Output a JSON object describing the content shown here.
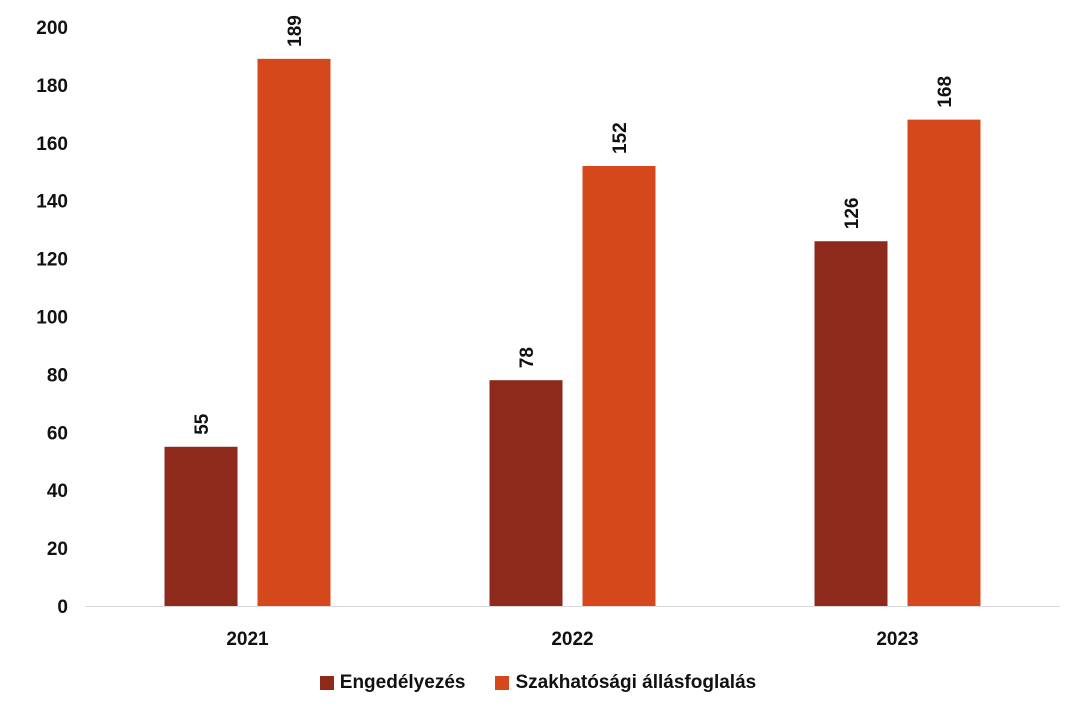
{
  "chart_data": {
    "type": "bar",
    "categories": [
      "2021",
      "2022",
      "2023"
    ],
    "series": [
      {
        "name": "Engedélyezés",
        "values": [
          55,
          78,
          126
        ],
        "color": "#8e2a1c"
      },
      {
        "name": "Szakhatósági állásfoglalás",
        "values": [
          189,
          152,
          168
        ],
        "color": "#d4481c"
      }
    ],
    "ylim": [
      0,
      200
    ],
    "yticks": [
      0,
      20,
      40,
      60,
      80,
      100,
      120,
      140,
      160,
      180,
      200
    ],
    "grid": false,
    "legend_position": "bottom",
    "data_labels": true,
    "data_label_rotation": "vertical"
  }
}
